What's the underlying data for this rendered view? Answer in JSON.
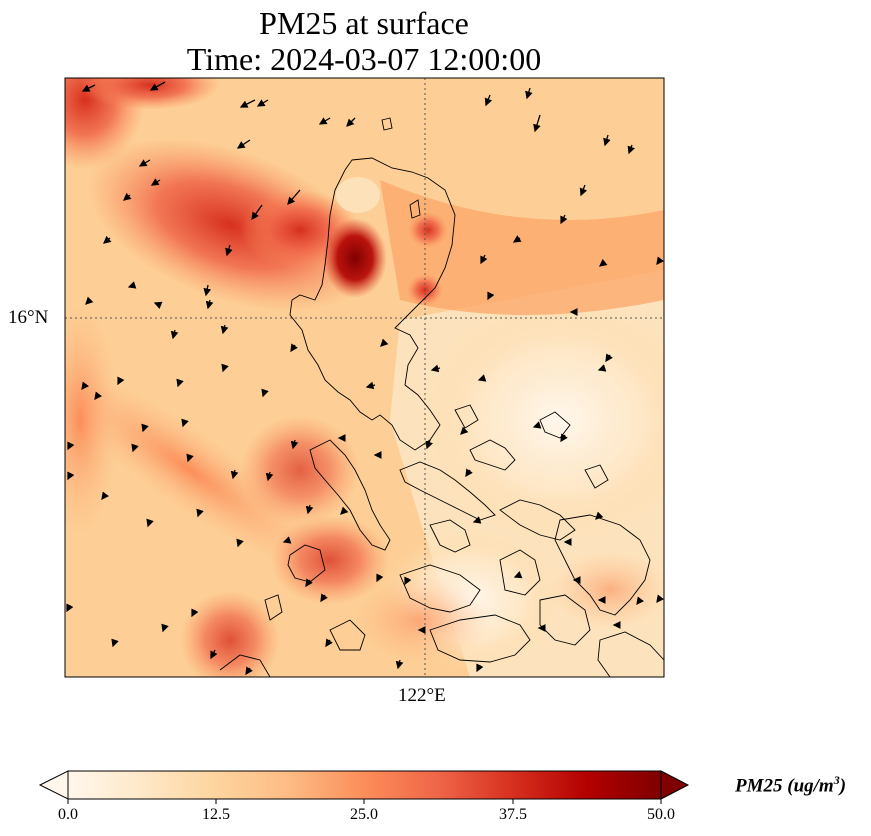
{
  "title": {
    "line1": "PM25 at surface",
    "line2": "Time: 2024-03-07 12:00:00"
  },
  "map": {
    "variable": "PM25",
    "level": "surface",
    "overlay": "wind vectors",
    "coastlines": true,
    "gridlines": "dotted",
    "lat_labels": [
      "16°N"
    ],
    "lon_labels": [
      "122°E"
    ]
  },
  "colorbar": {
    "colormap": "OrRd",
    "min": 0.0,
    "max": 50.0,
    "extend": "both",
    "ticks": [
      "0.0",
      "12.5",
      "25.0",
      "37.5",
      "50.0"
    ],
    "label_main": "PM25 (ug/m",
    "label_sup": "3",
    "label_end": ")"
  }
}
